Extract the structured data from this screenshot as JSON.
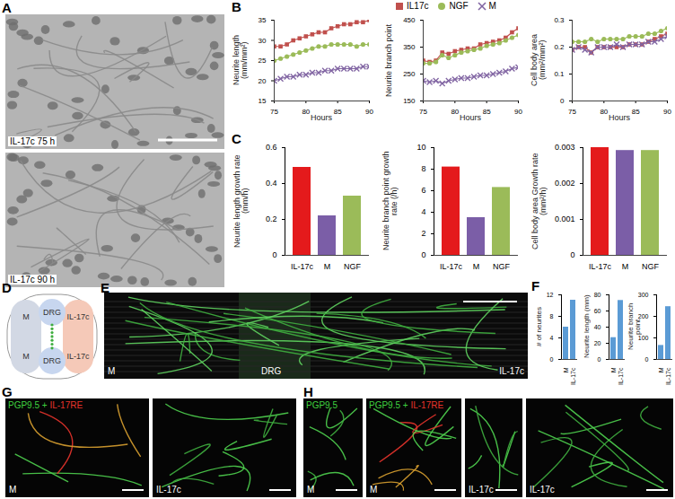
{
  "chart_data": [
    {
      "panel": "B",
      "type": "line",
      "y_label": "Neurite length (mm/mm²)",
      "x_label": "Hours",
      "x": [
        75,
        76,
        77,
        78,
        79,
        80,
        81,
        82,
        83,
        84,
        85,
        86,
        87,
        88,
        89,
        90
      ],
      "xlim": [
        75,
        90
      ],
      "xticks": [
        75,
        80,
        85,
        90
      ],
      "ylim": [
        15,
        35
      ],
      "yticks": [
        15,
        20,
        25,
        30,
        35
      ],
      "legend": "top",
      "series": [
        {
          "name": "IL17c",
          "color": "#c0504d",
          "marker": "square",
          "values": [
            28.5,
            28.5,
            29,
            30,
            30.5,
            31,
            31.5,
            32,
            32,
            33,
            33.5,
            34,
            34,
            34.5,
            34.5,
            35
          ]
        },
        {
          "name": "NGF",
          "color": "#9bbb59",
          "marker": "circle",
          "values": [
            25,
            25.5,
            26,
            26.5,
            27,
            27.5,
            28,
            28.5,
            28.5,
            29,
            29,
            29,
            29,
            28.5,
            29,
            29
          ]
        },
        {
          "name": "M",
          "color": "#8064a2",
          "marker": "times",
          "values": [
            20,
            20.5,
            21,
            21,
            21.5,
            21.5,
            22,
            22,
            22.5,
            22.5,
            23,
            23,
            23,
            23,
            23.5,
            23.5
          ]
        }
      ]
    },
    {
      "type": "line",
      "y_label": "Neurite branch point",
      "x_label": "Hours",
      "x": [
        75,
        76,
        77,
        78,
        79,
        80,
        81,
        82,
        83,
        84,
        85,
        86,
        87,
        88,
        89,
        90
      ],
      "xlim": [
        75,
        90
      ],
      "xticks": [
        75,
        80,
        85,
        90
      ],
      "ylim": [
        150,
        450
      ],
      "yticks": [
        150,
        250,
        350,
        450
      ],
      "series": [
        {
          "name": "IL17c",
          "color": "#c0504d",
          "marker": "square",
          "values": [
            300,
            295,
            300,
            330,
            325,
            335,
            340,
            345,
            345,
            360,
            365,
            370,
            375,
            385,
            405,
            420
          ]
        },
        {
          "name": "NGF",
          "color": "#9bbb59",
          "marker": "circle",
          "values": [
            290,
            290,
            295,
            320,
            310,
            320,
            330,
            335,
            340,
            345,
            355,
            360,
            365,
            375,
            385,
            395
          ]
        },
        {
          "name": "M",
          "color": "#8064a2",
          "marker": "times",
          "values": [
            225,
            220,
            225,
            215,
            225,
            230,
            235,
            235,
            240,
            245,
            245,
            250,
            255,
            260,
            270,
            275
          ]
        }
      ]
    },
    {
      "type": "line",
      "y_label": "Cell body area (mm²/mm²)",
      "x_label": "Hours",
      "x": [
        75,
        76,
        77,
        78,
        79,
        80,
        81,
        82,
        83,
        84,
        85,
        86,
        87,
        88,
        89,
        90
      ],
      "xlim": [
        75,
        90
      ],
      "xticks": [
        75,
        80,
        85,
        90
      ],
      "ylim": [
        0,
        0.3
      ],
      "yticks": [
        0,
        0.1,
        0.2,
        0.3
      ],
      "series": [
        {
          "name": "IL17c",
          "color": "#c0504d",
          "marker": "square",
          "values": [
            0.19,
            0.2,
            0.2,
            0.18,
            0.2,
            0.2,
            0.2,
            0.2,
            0.2,
            0.21,
            0.21,
            0.21,
            0.22,
            0.23,
            0.24,
            0.25
          ]
        },
        {
          "name": "NGF",
          "color": "#9bbb59",
          "marker": "circle",
          "values": [
            0.22,
            0.22,
            0.22,
            0.23,
            0.22,
            0.23,
            0.23,
            0.23,
            0.23,
            0.24,
            0.24,
            0.24,
            0.25,
            0.25,
            0.26,
            0.27
          ]
        },
        {
          "name": "M",
          "color": "#8064a2",
          "marker": "times",
          "values": [
            0.19,
            0.2,
            0.19,
            0.18,
            0.2,
            0.2,
            0.2,
            0.21,
            0.2,
            0.21,
            0.21,
            0.21,
            0.22,
            0.22,
            0.23,
            0.24
          ]
        }
      ]
    },
    {
      "panel": "C",
      "type": "bar",
      "y_label": "Neurite length growth rate (mm/h)",
      "categories": [
        "IL-17c",
        "M",
        "NGF"
      ],
      "values": [
        0.49,
        0.22,
        0.33
      ],
      "colors": [
        "#e41a1c",
        "#7b5ea7",
        "#9bbb59"
      ],
      "ylim": [
        0,
        0.6
      ],
      "yticks": [
        0,
        0.2,
        0.4,
        0.6
      ]
    },
    {
      "type": "bar",
      "y_label": "Neurite branch point growth rate (/h)",
      "categories": [
        "IL-17c",
        "M",
        "NGF"
      ],
      "values": [
        8.2,
        3.5,
        6.3
      ],
      "colors": [
        "#e41a1c",
        "#7b5ea7",
        "#9bbb59"
      ],
      "ylim": [
        0,
        10
      ],
      "yticks": [
        0,
        2,
        4,
        6,
        8,
        10
      ]
    },
    {
      "type": "bar",
      "y_label": "Cell body area Growth rate (mm²/h)",
      "categories": [
        "IL-17c",
        "M",
        "NGF"
      ],
      "values": [
        0.003,
        0.00292,
        0.00292
      ],
      "colors": [
        "#e41a1c",
        "#7b5ea7",
        "#9bbb59"
      ],
      "ylim": [
        0,
        0.003
      ],
      "yticks": [
        0,
        0.001,
        0.002,
        0.003
      ]
    },
    {
      "panel": "F",
      "type": "bar",
      "y_label": "# of neurites",
      "categories": [
        "M",
        "IL-17c"
      ],
      "values": [
        6,
        11
      ],
      "color": "#5b9bd5",
      "ylim": [
        0,
        12
      ],
      "yticks": [
        0,
        4,
        8,
        12
      ]
    },
    {
      "type": "bar",
      "y_label": "Neurite length (mm)",
      "categories": [
        "M",
        "IL-17c"
      ],
      "values": [
        27,
        73
      ],
      "color": "#5b9bd5",
      "ylim": [
        0,
        80
      ],
      "yticks": [
        0,
        20,
        40,
        60,
        80
      ]
    },
    {
      "type": "bar",
      "y_label": "Neurite branch point",
      "categories": [
        "M",
        "IL-17c"
      ],
      "values": [
        65,
        245
      ],
      "color": "#5b9bd5",
      "ylim": [
        0,
        300
      ],
      "yticks": [
        0,
        100,
        200,
        300
      ]
    }
  ],
  "figure_panels": {
    "A": {
      "images": [
        {
          "label": "IL-17c 75 h"
        },
        {
          "label": "IL-17c 90 h"
        }
      ]
    },
    "D": {
      "left": [
        "M",
        "M"
      ],
      "center": [
        "DRG",
        "DRG"
      ],
      "right": [
        "IL-17c",
        "IL-17c"
      ]
    },
    "E": {
      "labels": [
        "M",
        "DRG",
        "IL-17c"
      ]
    },
    "G": {
      "images": [
        {
          "stain": [
            {
              "text": "PGP9.5 +",
              "color": "#3fd13f"
            },
            {
              "text": "IL-17RE",
              "color": "#e8342c"
            }
          ],
          "label": "M"
        },
        {
          "label": "IL-17c"
        }
      ]
    },
    "H": {
      "images": [
        {
          "stain": [
            {
              "text": "PGP9.5",
              "color": "#3fd13f"
            }
          ],
          "label": "M"
        },
        {
          "stain": [
            {
              "text": "PGP9.5 +",
              "color": "#3fd13f"
            },
            {
              "text": "IL-17RE",
              "color": "#e8342c"
            }
          ],
          "label": "M"
        },
        {
          "label": "IL-17c"
        },
        {
          "label": "IL-17c"
        }
      ]
    }
  }
}
